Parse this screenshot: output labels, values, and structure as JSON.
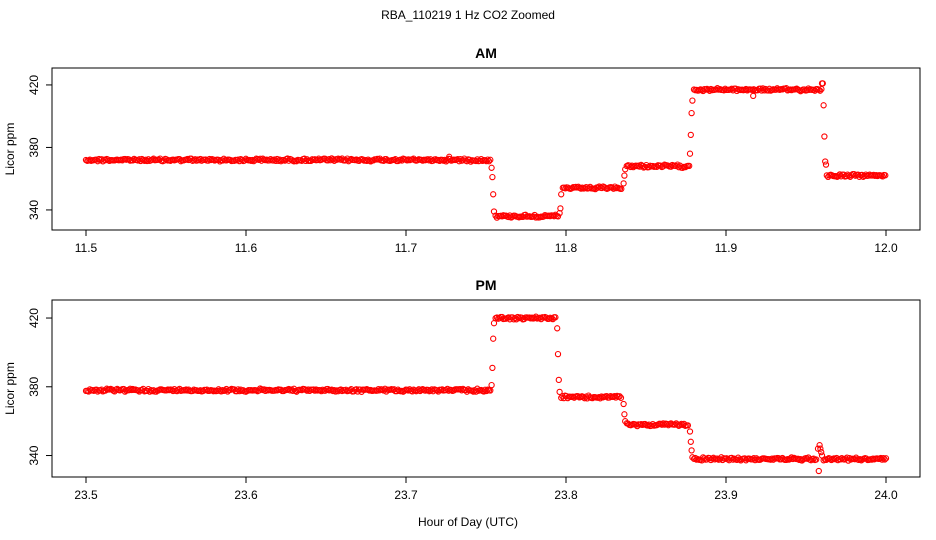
{
  "figure": {
    "supertitle": "RBA_110219  1 Hz CO2 Zoomed",
    "xlabel": "Hour of Day (UTC)",
    "colors": {
      "points": "#ff0000",
      "axis": "#000000"
    }
  },
  "chart_data": [
    {
      "type": "scatter",
      "title": "AM",
      "ylabel": "Licor ppm",
      "xlim": [
        11.5,
        12.0
      ],
      "ylim": [
        331,
        427
      ],
      "xticks": [
        "11.5",
        "11.6",
        "11.7",
        "11.8",
        "11.9",
        "12.0"
      ],
      "yticks": [
        "340",
        "380",
        "420"
      ],
      "marker": "open-circle",
      "segments": [
        {
          "x": [
            11.5,
            11.753
          ],
          "y": 372
        },
        {
          "x": [
            11.756,
            11.795
          ],
          "y": 336
        },
        {
          "x": [
            11.798,
            11.835
          ],
          "y": 354
        },
        {
          "x": [
            11.838,
            11.877
          ],
          "y": 368
        },
        {
          "x": [
            11.88,
            11.96
          ],
          "y": 417
        },
        {
          "x": [
            11.963,
            12.0
          ],
          "y": 362
        }
      ],
      "transitions": [
        {
          "x": 11.7535,
          "y": 367
        },
        {
          "x": 11.754,
          "y": 361
        },
        {
          "x": 11.7545,
          "y": 350
        },
        {
          "x": 11.755,
          "y": 339
        },
        {
          "x": 11.796,
          "y": 338
        },
        {
          "x": 11.7965,
          "y": 341
        },
        {
          "x": 11.797,
          "y": 350
        },
        {
          "x": 11.836,
          "y": 357
        },
        {
          "x": 11.8365,
          "y": 362
        },
        {
          "x": 11.837,
          "y": 366
        },
        {
          "x": 11.8775,
          "y": 376
        },
        {
          "x": 11.878,
          "y": 388
        },
        {
          "x": 11.8785,
          "y": 402
        },
        {
          "x": 11.879,
          "y": 410
        },
        {
          "x": 11.9605,
          "y": 421
        },
        {
          "x": 11.961,
          "y": 407
        },
        {
          "x": 11.9615,
          "y": 387
        },
        {
          "x": 11.962,
          "y": 371
        },
        {
          "x": 11.9625,
          "y": 369
        }
      ],
      "outliers": [
        {
          "x": 11.727,
          "y": 374
        },
        {
          "x": 11.917,
          "y": 413
        },
        {
          "x": 11.96,
          "y": 421
        }
      ]
    },
    {
      "type": "scatter",
      "title": "PM",
      "ylabel": "Licor ppm",
      "xlim": [
        23.5,
        24.0
      ],
      "ylim": [
        331,
        427
      ],
      "xticks": [
        "23.5",
        "23.6",
        "23.7",
        "23.8",
        "23.9",
        "24.0"
      ],
      "yticks": [
        "340",
        "380",
        "420"
      ],
      "marker": "open-circle",
      "segments": [
        {
          "x": [
            23.5,
            23.753
          ],
          "y": 378
        },
        {
          "x": [
            23.756,
            23.794
          ],
          "y": 420
        },
        {
          "x": [
            23.797,
            23.835
          ],
          "y": 374
        },
        {
          "x": [
            23.838,
            23.877
          ],
          "y": 358
        },
        {
          "x": [
            23.88,
            23.957
          ],
          "y": 338
        },
        {
          "x": [
            23.961,
            24.0
          ],
          "y": 338
        }
      ],
      "transitions": [
        {
          "x": 23.7535,
          "y": 381
        },
        {
          "x": 23.754,
          "y": 391
        },
        {
          "x": 23.7545,
          "y": 408
        },
        {
          "x": 23.755,
          "y": 417
        },
        {
          "x": 23.7945,
          "y": 414
        },
        {
          "x": 23.795,
          "y": 399
        },
        {
          "x": 23.7955,
          "y": 384
        },
        {
          "x": 23.796,
          "y": 377
        },
        {
          "x": 23.836,
          "y": 370
        },
        {
          "x": 23.8365,
          "y": 364
        },
        {
          "x": 23.837,
          "y": 360
        },
        {
          "x": 23.8775,
          "y": 354
        },
        {
          "x": 23.878,
          "y": 348
        },
        {
          "x": 23.8785,
          "y": 343
        },
        {
          "x": 23.879,
          "y": 339
        },
        {
          "x": 23.9585,
          "y": 346
        },
        {
          "x": 23.959,
          "y": 344
        },
        {
          "x": 23.9595,
          "y": 342
        },
        {
          "x": 23.96,
          "y": 340
        }
      ],
      "outliers": [
        {
          "x": 23.958,
          "y": 331
        },
        {
          "x": 23.9575,
          "y": 344
        }
      ]
    }
  ]
}
